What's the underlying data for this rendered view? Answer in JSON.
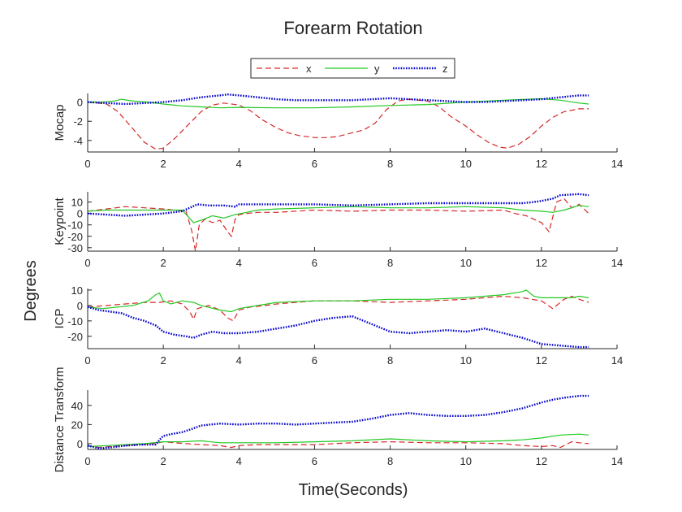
{
  "figure": {
    "title": "Forearm Rotation",
    "common_ylabel": "Degrees",
    "common_xlabel": "Time(Seconds)"
  },
  "legend": {
    "entries": [
      {
        "name": "x",
        "color": "#d62728",
        "style": "dashed"
      },
      {
        "name": "y",
        "color": "#22c922",
        "style": "solid"
      },
      {
        "name": "z",
        "color": "#0000cc",
        "style": "dotted"
      }
    ]
  },
  "chart_data": [
    {
      "type": "line",
      "ylabel": "Mocap",
      "xlim": [
        0,
        14
      ],
      "ylim": [
        -5.2,
        0.9
      ],
      "xticks": [
        0,
        2,
        4,
        6,
        8,
        10,
        12,
        14
      ],
      "yticks": [
        -4,
        -2,
        0
      ],
      "series": [
        {
          "name": "x",
          "x": [
            0,
            0.5,
            0.8,
            1.2,
            1.5,
            1.8,
            2.0,
            2.3,
            2.7,
            3.0,
            3.3,
            3.6,
            4.0,
            4.3,
            4.6,
            5.0,
            5.3,
            5.6,
            6.0,
            6.3,
            6.6,
            7.0,
            7.3,
            7.6,
            7.9,
            8.2,
            8.5,
            9.0,
            9.3,
            9.6,
            10.0,
            10.3,
            10.6,
            10.9,
            11.1,
            11.4,
            11.7,
            12.0,
            12.3,
            12.6,
            13.0,
            13.25
          ],
          "y": [
            0,
            -0.2,
            -1.0,
            -2.8,
            -4.2,
            -4.9,
            -4.8,
            -3.8,
            -2.2,
            -1.0,
            -0.3,
            -0.1,
            -0.3,
            -0.9,
            -1.8,
            -2.7,
            -3.2,
            -3.5,
            -3.7,
            -3.7,
            -3.6,
            -3.2,
            -2.9,
            -2.2,
            -0.8,
            0.1,
            0.3,
            0.1,
            -0.5,
            -1.5,
            -2.5,
            -3.4,
            -4.2,
            -4.7,
            -4.8,
            -4.4,
            -3.6,
            -2.5,
            -1.6,
            -1.0,
            -0.7,
            -0.7
          ]
        },
        {
          "name": "y",
          "x": [
            0,
            0.4,
            0.7,
            0.9,
            1.2,
            1.6,
            2.0,
            2.5,
            3.0,
            3.5,
            4.0,
            5.0,
            6.0,
            7.0,
            8.0,
            9.0,
            10.0,
            11.0,
            12.0,
            12.5,
            13.0,
            13.25
          ],
          "y": [
            0,
            0.0,
            0.1,
            0.3,
            0.1,
            0.0,
            -0.2,
            -0.4,
            -0.5,
            -0.6,
            -0.55,
            -0.6,
            -0.6,
            -0.5,
            -0.35,
            -0.25,
            0.0,
            0.2,
            0.35,
            0.2,
            -0.1,
            -0.2
          ]
        },
        {
          "name": "z",
          "x": [
            0,
            0.5,
            1.0,
            1.5,
            2.0,
            2.5,
            3.0,
            3.5,
            3.7,
            4.0,
            4.5,
            5.0,
            5.5,
            6.0,
            6.5,
            7.0,
            7.5,
            8.0,
            8.5,
            9.0,
            9.5,
            10.0,
            10.5,
            11.0,
            11.5,
            12.0,
            12.5,
            13.0,
            13.25
          ],
          "y": [
            0,
            -0.1,
            -0.2,
            -0.1,
            0.0,
            0.2,
            0.5,
            0.7,
            0.8,
            0.7,
            0.5,
            0.3,
            0.2,
            0.2,
            0.2,
            0.2,
            0.3,
            0.4,
            0.3,
            0.2,
            0.1,
            0.0,
            0.0,
            0.1,
            0.2,
            0.3,
            0.5,
            0.7,
            0.7
          ]
        }
      ]
    },
    {
      "type": "line",
      "ylabel": "Keypoint",
      "xlim": [
        0,
        14
      ],
      "ylim": [
        -33,
        19
      ],
      "xticks": [
        0,
        2,
        4,
        6,
        8,
        10,
        12,
        14
      ],
      "yticks": [
        -30,
        -20,
        -10,
        0,
        10
      ],
      "series": [
        {
          "name": "x",
          "x": [
            0,
            0.5,
            1.0,
            1.5,
            2.0,
            2.3,
            2.6,
            2.75,
            2.85,
            2.95,
            3.1,
            3.3,
            3.5,
            3.7,
            3.8,
            3.9,
            4.0,
            4.2,
            4.5,
            5.0,
            6.0,
            7.0,
            8.0,
            9.0,
            10.0,
            11.0,
            11.3,
            11.6,
            11.8,
            12.0,
            12.2,
            12.4,
            12.6,
            12.8,
            13.0,
            13.25
          ],
          "y": [
            2,
            4,
            6,
            5,
            4,
            3,
            2,
            -15,
            -33,
            -10,
            -5,
            -8,
            -6,
            -16,
            -20,
            -5,
            -1,
            0,
            1,
            1,
            3,
            2,
            3,
            3,
            2,
            3,
            0,
            -2,
            -5,
            -8,
            -16,
            10,
            13,
            5,
            8,
            0
          ]
        },
        {
          "name": "y",
          "x": [
            0,
            0.5,
            1.0,
            1.5,
            2.0,
            2.5,
            2.8,
            3.0,
            3.3,
            3.6,
            3.9,
            4.2,
            4.5,
            5.0,
            6.0,
            7.0,
            8.0,
            9.0,
            10.0,
            11.0,
            11.5,
            12.0,
            12.3,
            12.6,
            13.0,
            13.25
          ],
          "y": [
            2,
            3,
            3,
            3,
            3,
            3,
            -8,
            -6,
            -2,
            -4,
            -1,
            1,
            3,
            4,
            5,
            6,
            5,
            5,
            6,
            5,
            3,
            2,
            1,
            3,
            7,
            6
          ]
        },
        {
          "name": "z",
          "x": [
            0,
            0.5,
            1.0,
            1.5,
            2.0,
            2.5,
            2.7,
            2.9,
            3.2,
            3.6,
            3.9,
            4.0,
            4.5,
            5.0,
            6.0,
            7.0,
            8.0,
            9.0,
            10.0,
            11.0,
            11.5,
            11.8,
            12.0,
            12.3,
            12.5,
            13.0,
            13.25
          ],
          "y": [
            0,
            -1,
            -2,
            -1,
            0,
            2,
            5,
            8,
            7,
            7,
            6,
            8,
            8,
            8,
            8,
            7,
            8,
            9,
            9,
            9,
            9,
            10,
            11,
            13,
            16,
            17,
            16
          ]
        }
      ]
    },
    {
      "type": "line",
      "ylabel": "ICP",
      "xlim": [
        0,
        14
      ],
      "ylim": [
        -28,
        11
      ],
      "xticks": [
        0,
        2,
        4,
        6,
        8,
        10,
        12,
        14
      ],
      "yticks": [
        -20,
        -10,
        0,
        10
      ],
      "series": [
        {
          "name": "x",
          "x": [
            0,
            0.5,
            1.0,
            1.5,
            1.9,
            2.2,
            2.5,
            2.7,
            2.8,
            2.9,
            3.2,
            3.5,
            3.7,
            3.85,
            4.0,
            4.3,
            4.7,
            5.0,
            6.0,
            7.0,
            8.0,
            9.0,
            10.0,
            11.0,
            11.5,
            12.0,
            12.3,
            12.6,
            12.8,
            13.0,
            13.25
          ],
          "y": [
            -1,
            0,
            1,
            2,
            2,
            3,
            1,
            -4,
            -9,
            -2,
            0,
            -3,
            -8,
            -10,
            -3,
            -1,
            0,
            1,
            3,
            3,
            2,
            3,
            4,
            6,
            5,
            3,
            -2,
            4,
            6,
            4,
            2
          ]
        },
        {
          "name": "y",
          "x": [
            0,
            0.4,
            0.8,
            1.2,
            1.6,
            1.8,
            1.9,
            2.0,
            2.2,
            2.5,
            2.8,
            3.0,
            3.5,
            3.8,
            4.0,
            4.5,
            5.0,
            6.0,
            7.0,
            8.0,
            9.0,
            10.0,
            11.0,
            11.5,
            11.6,
            11.8,
            12.0,
            12.4,
            12.8,
            13.0,
            13.25
          ],
          "y": [
            -1,
            -2,
            -1,
            0,
            3,
            7,
            8,
            3,
            1,
            3,
            2,
            0,
            -3,
            -4,
            -2,
            0,
            2,
            3,
            3,
            4,
            4,
            5,
            7,
            9,
            10,
            6,
            5,
            5,
            5,
            6,
            5
          ]
        },
        {
          "name": "z",
          "x": [
            0,
            0.3,
            0.6,
            0.9,
            1.2,
            1.5,
            1.8,
            2.0,
            2.3,
            2.6,
            2.8,
            3.0,
            3.3,
            3.6,
            4.0,
            4.5,
            5.0,
            5.5,
            6.0,
            6.5,
            7.0,
            7.5,
            8.0,
            8.5,
            9.0,
            9.5,
            10.0,
            10.5,
            11.0,
            11.5,
            12.0,
            12.5,
            13.0,
            13.25
          ],
          "y": [
            -1,
            -3,
            -4,
            -5,
            -8,
            -10,
            -13,
            -17,
            -19,
            -20,
            -21,
            -19,
            -17,
            -18,
            -18,
            -17,
            -15,
            -13,
            -10,
            -8,
            -7,
            -12,
            -17,
            -18,
            -17,
            -16,
            -17,
            -15,
            -18,
            -21,
            -25,
            -26,
            -27,
            -27
          ]
        }
      ]
    },
    {
      "type": "line",
      "ylabel": "Distance Transform",
      "xlim": [
        0,
        14
      ],
      "ylim": [
        -6,
        56
      ],
      "xticks": [
        0,
        2,
        4,
        6,
        8,
        10,
        12,
        14
      ],
      "yticks": [
        0,
        20,
        40
      ],
      "series": [
        {
          "name": "x",
          "x": [
            0,
            0.3,
            0.6,
            1.0,
            1.4,
            1.8,
            2.0,
            2.3,
            2.6,
            3.0,
            3.5,
            3.8,
            4.0,
            4.5,
            5.0,
            6.0,
            7.0,
            8.0,
            9.0,
            10.0,
            11.0,
            11.5,
            12.0,
            12.3,
            12.5,
            12.8,
            13.0,
            13.25
          ],
          "y": [
            -2,
            -4,
            -3,
            -2,
            -1,
            0,
            2,
            1,
            0,
            -1,
            -2,
            -4,
            -2,
            -1,
            -1,
            -1,
            1,
            2,
            1,
            1,
            0,
            -2,
            -3,
            -2,
            -4,
            2,
            1,
            0
          ]
        },
        {
          "name": "y",
          "x": [
            0,
            0.5,
            1.0,
            1.5,
            2.0,
            2.5,
            3.0,
            3.5,
            4.0,
            5.0,
            6.0,
            7.0,
            8.0,
            9.0,
            10.0,
            11.0,
            11.5,
            12.0,
            12.5,
            13.0,
            13.25
          ],
          "y": [
            -3,
            -2,
            -1,
            0,
            2,
            2,
            3,
            1,
            1,
            1,
            2,
            3,
            5,
            3,
            2,
            3,
            4,
            6,
            9,
            10,
            9
          ]
        },
        {
          "name": "z",
          "x": [
            0,
            0.3,
            0.6,
            1.0,
            1.4,
            1.8,
            1.9,
            2.0,
            2.2,
            2.5,
            2.8,
            3.0,
            3.5,
            4.0,
            4.5,
            5.0,
            5.5,
            6.0,
            6.5,
            7.0,
            7.5,
            8.0,
            8.5,
            9.0,
            9.5,
            10.0,
            10.5,
            11.0,
            11.5,
            12.0,
            12.3,
            12.6,
            13.0,
            13.25
          ],
          "y": [
            -2,
            -5,
            -4,
            -2,
            -1,
            -1,
            4,
            8,
            10,
            12,
            16,
            19,
            21,
            20,
            21,
            21,
            20,
            21,
            22,
            23,
            26,
            30,
            32,
            30,
            29,
            29,
            30,
            33,
            37,
            43,
            46,
            48,
            50,
            50
          ]
        }
      ]
    }
  ]
}
